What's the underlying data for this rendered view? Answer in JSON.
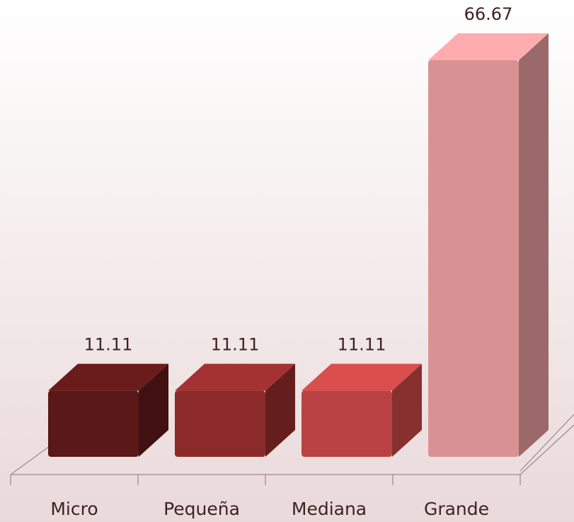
{
  "chart_data": {
    "type": "bar3d",
    "categories": [
      "Micro",
      "Pequeña",
      "Mediana",
      "Grande"
    ],
    "values": [
      11.11,
      11.11,
      11.11,
      66.67
    ],
    "colors": [
      "#5a1818",
      "#8c2a2a",
      "#ba4242",
      "#d99294"
    ]
  }
}
